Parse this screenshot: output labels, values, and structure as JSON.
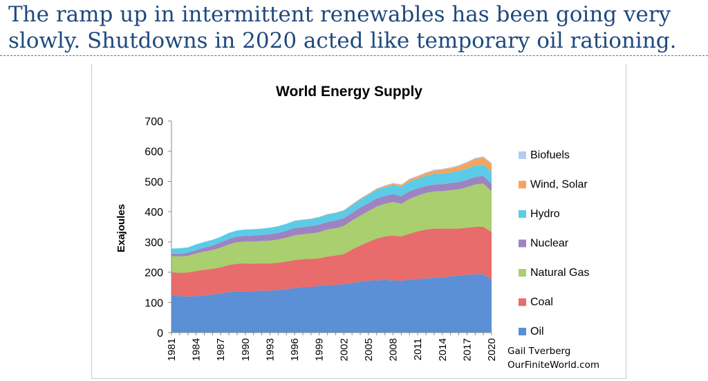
{
  "headline": {
    "line1": "The ramp up in intermittent renewables has been going very",
    "line2": "slowly. Shutdowns in 2020 acted like temporary oil rationing."
  },
  "credit": {
    "author": "Gail Tverberg",
    "site": "OurFiniteWorld.com"
  },
  "chart_data": {
    "type": "area",
    "stacked": true,
    "title": "World Energy Supply",
    "xlabel": "",
    "ylabel": "Exajoules",
    "ylim": [
      0,
      700
    ],
    "yticks": [
      0,
      100,
      200,
      300,
      400,
      500,
      600,
      700
    ],
    "xticks": [
      "1981",
      "1984",
      "1987",
      "1990",
      "1993",
      "1996",
      "1999",
      "2002",
      "2005",
      "2008",
      "2011",
      "2014",
      "2017",
      "2020"
    ],
    "legend_position": "right",
    "grid": false,
    "x": [
      1981,
      1982,
      1983,
      1984,
      1985,
      1986,
      1987,
      1988,
      1989,
      1990,
      1991,
      1992,
      1993,
      1994,
      1995,
      1996,
      1997,
      1998,
      1999,
      2000,
      2001,
      2002,
      2003,
      2004,
      2005,
      2006,
      2007,
      2008,
      2009,
      2010,
      2011,
      2012,
      2013,
      2014,
      2015,
      2016,
      2017,
      2018,
      2019,
      2020
    ],
    "series": [
      {
        "name": "Oil",
        "color": "#5b8fd6",
        "values": [
          124,
          121,
          119,
          121,
          122,
          126,
          129,
          134,
          136,
          137,
          137,
          139,
          138,
          141,
          144,
          147,
          151,
          151,
          155,
          157,
          158,
          160,
          164,
          169,
          172,
          173,
          174,
          173,
          171,
          175,
          177,
          179,
          181,
          183,
          186,
          189,
          191,
          193,
          193,
          175
        ]
      },
      {
        "name": "Coal",
        "color": "#e76c6b",
        "values": [
          76,
          77,
          80,
          83,
          86,
          85,
          87,
          90,
          92,
          92,
          91,
          90,
          91,
          90,
          91,
          93,
          92,
          93,
          91,
          95,
          97,
          100,
          111,
          119,
          128,
          138,
          144,
          148,
          147,
          152,
          158,
          162,
          163,
          161,
          158,
          155,
          156,
          157,
          157,
          158
        ]
      },
      {
        "name": "Natural Gas",
        "color": "#a9cf6e",
        "values": [
          53,
          54,
          55,
          58,
          60,
          62,
          65,
          68,
          71,
          72,
          73,
          74,
          75,
          77,
          79,
          82,
          82,
          84,
          86,
          89,
          90,
          93,
          96,
          99,
          102,
          106,
          108,
          111,
          108,
          115,
          118,
          121,
          123,
          124,
          127,
          130,
          134,
          140,
          143,
          135
        ]
      },
      {
        "name": "Nuclear",
        "color": "#9e83c2",
        "values": [
          8,
          9,
          10,
          11,
          13,
          15,
          17,
          18,
          19,
          19,
          20,
          20,
          21,
          22,
          23,
          24,
          24,
          24,
          25,
          25,
          26,
          26,
          25,
          27,
          26,
          27,
          26,
          26,
          25,
          26,
          24,
          23,
          23,
          23,
          24,
          24,
          24,
          25,
          25,
          24
        ]
      },
      {
        "name": "Hydro",
        "color": "#5ccbe7",
        "values": [
          17,
          18,
          18,
          19,
          19,
          19,
          19,
          20,
          20,
          21,
          21,
          21,
          22,
          22,
          23,
          24,
          24,
          24,
          25,
          25,
          25,
          25,
          26,
          27,
          28,
          29,
          29,
          30,
          31,
          32,
          32,
          34,
          35,
          35,
          35,
          37,
          38,
          38,
          38,
          40
        ]
      },
      {
        "name": "Wind, Solar",
        "color": "#f5a45c",
        "values": [
          0,
          0,
          0,
          0,
          0,
          0,
          0,
          0,
          0,
          0,
          0,
          0,
          0,
          0,
          0,
          0,
          1,
          1,
          1,
          1,
          1,
          1,
          2,
          2,
          3,
          3,
          4,
          5,
          6,
          7,
          8,
          9,
          11,
          13,
          14,
          16,
          19,
          22,
          24,
          26
        ]
      },
      {
        "name": "Biofuels",
        "color": "#b4cbee",
        "values": [
          0,
          0,
          0,
          0,
          0,
          0,
          0,
          0,
          0,
          0,
          0,
          0,
          0,
          0,
          0,
          0,
          0,
          0,
          0,
          0,
          0,
          0,
          1,
          1,
          1,
          1,
          2,
          2,
          2,
          2,
          2,
          2,
          3,
          3,
          3,
          3,
          3,
          3,
          3,
          3
        ]
      }
    ]
  }
}
